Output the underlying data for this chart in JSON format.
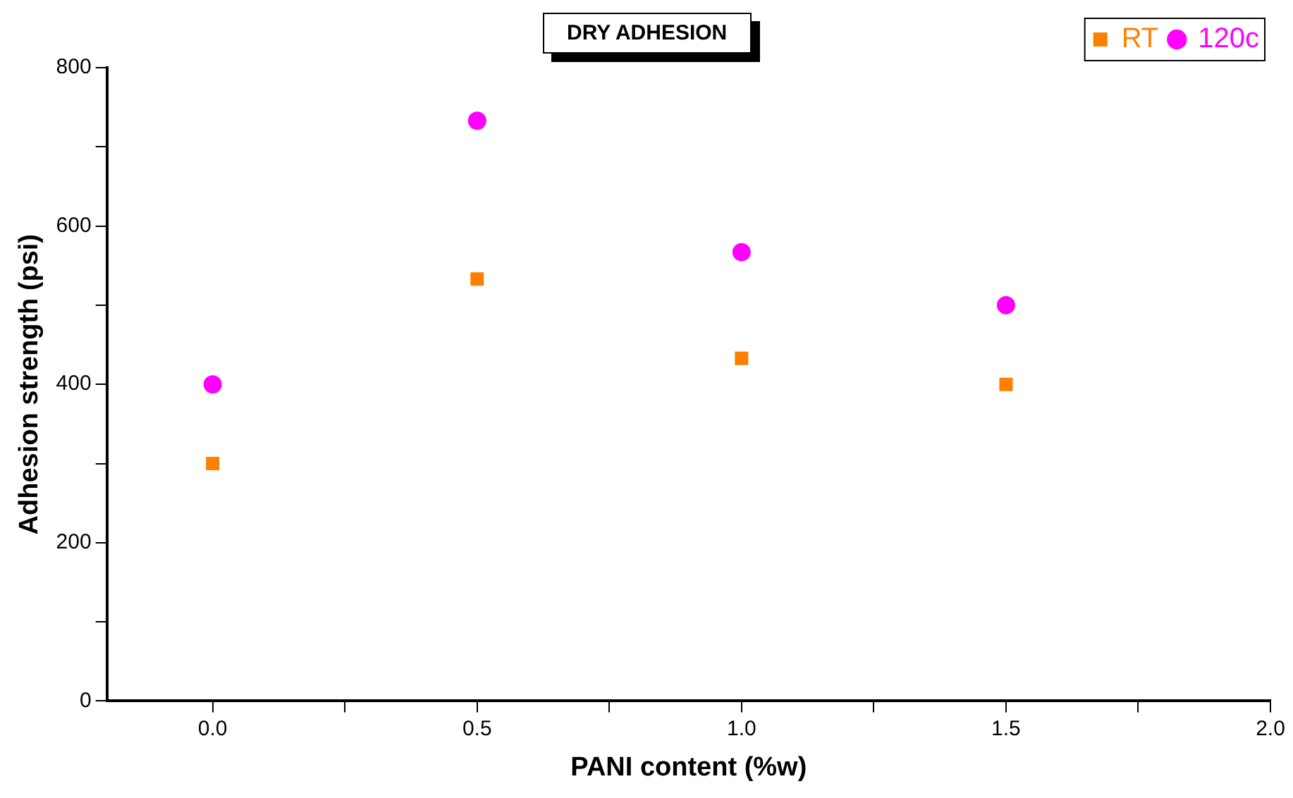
{
  "chart_data": {
    "type": "scatter",
    "title": "DRY ADHESION",
    "xlabel": "PANI content (%w)",
    "ylabel": "Adhesion strength (psi)",
    "x": [
      0,
      0.5,
      1,
      1.5
    ],
    "series": [
      {
        "name": "RT",
        "color": "#ff8000",
        "marker": "square",
        "values": [
          300,
          533,
          433,
          400
        ]
      },
      {
        "name": "120c",
        "color": "#ff00ff",
        "marker": "circle",
        "values": [
          400,
          733,
          567,
          500
        ]
      }
    ],
    "xlim": [
      -0.2,
      2
    ],
    "xticks": [
      {
        "value": 0,
        "label": "0.0"
      },
      {
        "value": 0.25,
        "label": null
      },
      {
        "value": 0.5,
        "label": "0.5"
      },
      {
        "value": 0.75,
        "label": null
      },
      {
        "value": 1,
        "label": "1.0"
      },
      {
        "value": 1.25,
        "label": null
      },
      {
        "value": 1.5,
        "label": "1.5"
      },
      {
        "value": 1.75,
        "label": null
      },
      {
        "value": 2,
        "label": "2.0"
      }
    ],
    "ylim": [
      0,
      800
    ],
    "yticks": [
      0,
      {
        "value": 100,
        "label": null
      },
      200,
      {
        "value": 300,
        "label": null
      },
      400,
      {
        "value": 500,
        "label": null
      },
      600,
      {
        "value": 700,
        "label": null
      },
      800
    ],
    "grid": false,
    "legend": "top right"
  }
}
